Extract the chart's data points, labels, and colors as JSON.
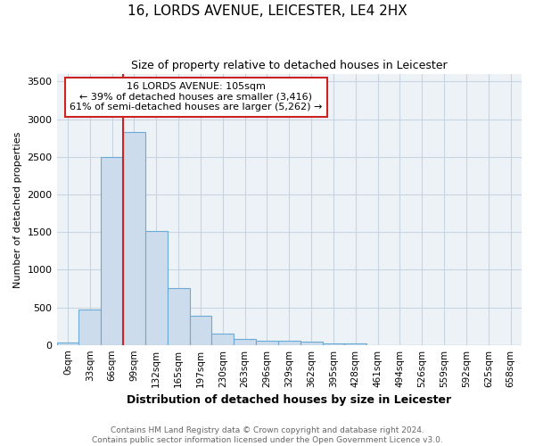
{
  "title": "16, LORDS AVENUE, LEICESTER, LE4 2HX",
  "subtitle": "Size of property relative to detached houses in Leicester",
  "xlabel": "Distribution of detached houses by size in Leicester",
  "ylabel": "Number of detached properties",
  "footer_line1": "Contains HM Land Registry data © Crown copyright and database right 2024.",
  "footer_line2": "Contains public sector information licensed under the Open Government Licence v3.0.",
  "bin_labels": [
    "0sqm",
    "33sqm",
    "66sqm",
    "99sqm",
    "132sqm",
    "165sqm",
    "197sqm",
    "230sqm",
    "263sqm",
    "296sqm",
    "329sqm",
    "362sqm",
    "395sqm",
    "428sqm",
    "461sqm",
    "494sqm",
    "526sqm",
    "559sqm",
    "592sqm",
    "625sqm",
    "658sqm"
  ],
  "bar_heights": [
    30,
    470,
    2500,
    2830,
    1510,
    750,
    390,
    155,
    75,
    55,
    50,
    45,
    25,
    20,
    0,
    0,
    0,
    0,
    0,
    0,
    0
  ],
  "bar_color": "#ccdcec",
  "bar_edge_color": "#6aaad4",
  "grid_color": "#c8d4e0",
  "background_color": "#edf2f7",
  "red_line_bin_index": 3,
  "annotation_line_color": "#cc2222",
  "annotation_box_text_line1": "16 LORDS AVENUE: 105sqm",
  "annotation_box_text_line2": "← 39% of detached houses are smaller (3,416)",
  "annotation_box_text_line3": "61% of semi-detached houses are larger (5,262) →",
  "annotation_box_color": "#cc2222",
  "annotation_box_bg": "#ffffff",
  "ylim": [
    0,
    3600
  ],
  "yticks": [
    0,
    500,
    1000,
    1500,
    2000,
    2500,
    3000,
    3500
  ],
  "title_fontsize": 11,
  "subtitle_fontsize": 9,
  "xlabel_fontsize": 9,
  "ylabel_fontsize": 8,
  "tick_fontsize": 8,
  "xtick_fontsize": 7.5,
  "footer_fontsize": 6.5,
  "annotation_fontsize": 8
}
